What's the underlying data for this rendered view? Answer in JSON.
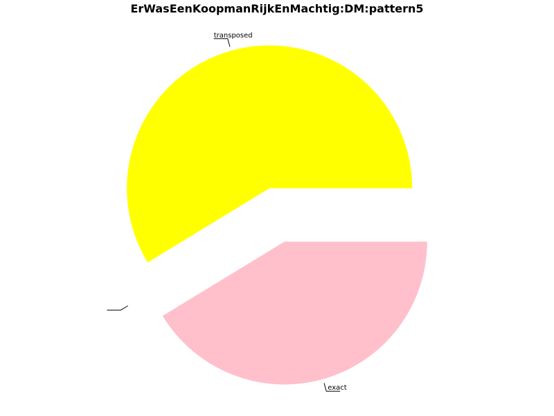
{
  "chart_data": {
    "type": "pie",
    "title": "ErWasEenKoopmanRijkEnMachtig:DM:pattern5",
    "slices": [
      {
        "label": "transposed",
        "value": 0.587,
        "color": "#ffff00",
        "exploded": true
      },
      {
        "label": "",
        "value": 0.0,
        "color": "#ffffff",
        "exploded": true
      },
      {
        "label": "exact",
        "value": 0.413,
        "color": "#ffc0cb",
        "exploded": true
      }
    ],
    "start": "3 o'clock",
    "direction": "counter-clockwise",
    "legend": "none"
  }
}
